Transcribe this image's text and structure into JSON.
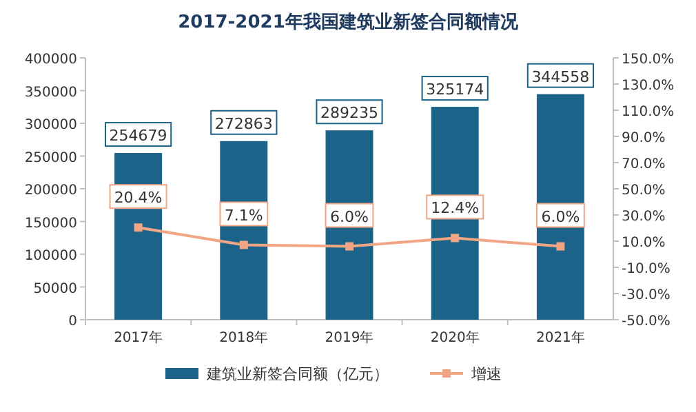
{
  "chart_data": {
    "type": "bar",
    "title": "2017-2021年我国建筑业新签合同额情况",
    "categories": [
      "2017年",
      "2018年",
      "2019年",
      "2020年",
      "2021年"
    ],
    "series": [
      {
        "name": "建筑业新签合同额（亿元）",
        "color": "#1b6388",
        "values": [
          254679,
          272863,
          289235,
          325174,
          344558
        ],
        "value_labels": [
          "254679",
          "272863",
          "289235",
          "325174",
          "344558"
        ]
      },
      {
        "name": "增速",
        "type": "line",
        "axis": "y2",
        "color": "#f0a585",
        "marker": "square",
        "values": [
          20.4,
          7.1,
          6.0,
          12.4,
          6.0
        ],
        "value_labels": [
          "20.4%",
          "7.1%",
          "6.0%",
          "12.4%",
          "6.0%"
        ]
      }
    ],
    "ylim": [
      0,
      400000
    ],
    "yticks": [
      0,
      50000,
      100000,
      150000,
      200000,
      250000,
      300000,
      350000,
      400000
    ],
    "y2lim": [
      -50,
      150
    ],
    "y2ticks": [
      {
        "value": -50,
        "label": "-50.0%"
      },
      {
        "value": -30,
        "label": "-30.0%"
      },
      {
        "value": -10,
        "label": "-10.0%"
      },
      {
        "value": 10,
        "label": "10.0%"
      },
      {
        "value": 30,
        "label": "30.0%"
      },
      {
        "value": 50,
        "label": "50.0%"
      },
      {
        "value": 70,
        "label": "70.0%"
      },
      {
        "value": 90,
        "label": "90.0%"
      },
      {
        "value": 110,
        "label": "110.0%"
      },
      {
        "value": 130,
        "label": "130.0%"
      },
      {
        "value": 150,
        "label": "150.0%"
      }
    ],
    "legend": "bottom"
  }
}
